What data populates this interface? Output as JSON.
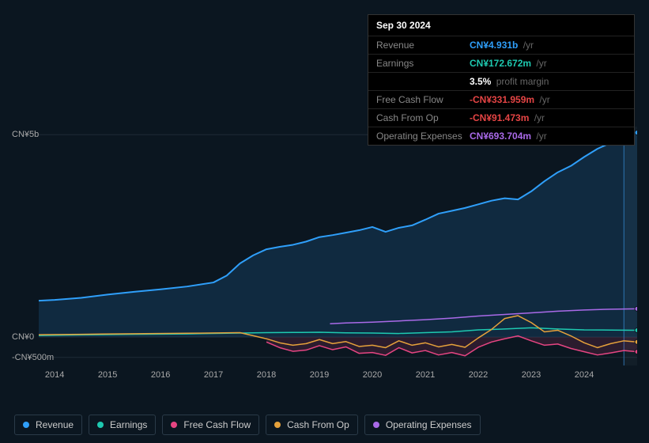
{
  "tooltip": {
    "date": "Sep 30 2024",
    "rows": [
      {
        "label": "Revenue",
        "value": "CN¥4.931b",
        "suffix": "/yr",
        "color": "#2f9ffa"
      },
      {
        "label": "Earnings",
        "value": "CN¥172.672m",
        "suffix": "/yr",
        "color": "#1ec9b0"
      },
      {
        "label": "",
        "value": "3.5%",
        "suffix": "profit margin",
        "color": "#ffffff"
      },
      {
        "label": "Free Cash Flow",
        "value": "-CN¥331.959m",
        "suffix": "/yr",
        "color": "#e64545"
      },
      {
        "label": "Cash From Op",
        "value": "-CN¥91.473m",
        "suffix": "/yr",
        "color": "#e64545"
      },
      {
        "label": "Operating Expenses",
        "value": "CN¥693.704m",
        "suffix": "/yr",
        "color": "#a96ae8"
      }
    ]
  },
  "chart": {
    "type": "line-area",
    "background_color": "#0b1620",
    "grid_color": "#1e2a36",
    "indicator_x": 2024.75,
    "future_band": {
      "from": 2024.75,
      "to": 2025.0,
      "color": "rgba(120,140,160,0.07)"
    },
    "xlim": [
      2013.7,
      2025.0
    ],
    "x_ticks": [
      2014,
      2015,
      2016,
      2017,
      2018,
      2019,
      2020,
      2021,
      2022,
      2023,
      2024
    ],
    "ylim": [
      -700,
      5200
    ],
    "y_ticks": [
      {
        "v": 5000,
        "label": "CN¥5b"
      },
      {
        "v": 0,
        "label": "CN¥0"
      },
      {
        "v": -500,
        "label": "-CN¥500m"
      }
    ],
    "tick_fontsize": 11,
    "tick_color": "#aaaaaa",
    "series": [
      {
        "name": "Revenue",
        "color": "#2f9ffa",
        "area_color": "rgba(47,159,250,0.15)",
        "area": true,
        "line_width": 2,
        "data": [
          [
            2013.7,
            900
          ],
          [
            2014.0,
            920
          ],
          [
            2014.5,
            970
          ],
          [
            2015.0,
            1050
          ],
          [
            2015.5,
            1120
          ],
          [
            2016.0,
            1180
          ],
          [
            2016.5,
            1250
          ],
          [
            2017.0,
            1350
          ],
          [
            2017.25,
            1520
          ],
          [
            2017.5,
            1820
          ],
          [
            2017.75,
            2020
          ],
          [
            2018.0,
            2170
          ],
          [
            2018.25,
            2230
          ],
          [
            2018.5,
            2280
          ],
          [
            2018.75,
            2360
          ],
          [
            2019.0,
            2470
          ],
          [
            2019.25,
            2520
          ],
          [
            2019.5,
            2580
          ],
          [
            2019.75,
            2640
          ],
          [
            2020.0,
            2720
          ],
          [
            2020.25,
            2600
          ],
          [
            2020.5,
            2700
          ],
          [
            2020.75,
            2760
          ],
          [
            2021.0,
            2900
          ],
          [
            2021.25,
            3050
          ],
          [
            2021.5,
            3120
          ],
          [
            2021.75,
            3190
          ],
          [
            2022.0,
            3280
          ],
          [
            2022.25,
            3370
          ],
          [
            2022.5,
            3430
          ],
          [
            2022.75,
            3400
          ],
          [
            2023.0,
            3600
          ],
          [
            2023.25,
            3850
          ],
          [
            2023.5,
            4070
          ],
          [
            2023.75,
            4230
          ],
          [
            2024.0,
            4450
          ],
          [
            2024.25,
            4650
          ],
          [
            2024.5,
            4800
          ],
          [
            2024.75,
            4931
          ],
          [
            2025.0,
            5050
          ]
        ]
      },
      {
        "name": "Earnings",
        "color": "#1ec9b0",
        "line_width": 1.5,
        "data": [
          [
            2013.7,
            40
          ],
          [
            2014.5,
            55
          ],
          [
            2015.5,
            70
          ],
          [
            2016.5,
            80
          ],
          [
            2017.5,
            100
          ],
          [
            2018.0,
            110
          ],
          [
            2018.5,
            115
          ],
          [
            2019.0,
            120
          ],
          [
            2019.5,
            105
          ],
          [
            2020.0,
            100
          ],
          [
            2020.5,
            90
          ],
          [
            2021.0,
            110
          ],
          [
            2021.5,
            130
          ],
          [
            2022.0,
            180
          ],
          [
            2022.5,
            200
          ],
          [
            2023.0,
            230
          ],
          [
            2023.5,
            200
          ],
          [
            2024.0,
            180
          ],
          [
            2024.5,
            175
          ],
          [
            2024.75,
            173
          ],
          [
            2025.0,
            170
          ]
        ]
      },
      {
        "name": "Free Cash Flow",
        "color": "#e64582",
        "area_color": "rgba(230,69,130,0.15)",
        "area": true,
        "line_width": 1.5,
        "data": [
          [
            2018.0,
            -120
          ],
          [
            2018.25,
            -260
          ],
          [
            2018.5,
            -350
          ],
          [
            2018.75,
            -320
          ],
          [
            2019.0,
            -210
          ],
          [
            2019.25,
            -310
          ],
          [
            2019.5,
            -240
          ],
          [
            2019.75,
            -400
          ],
          [
            2020.0,
            -380
          ],
          [
            2020.25,
            -450
          ],
          [
            2020.5,
            -260
          ],
          [
            2020.75,
            -390
          ],
          [
            2021.0,
            -330
          ],
          [
            2021.25,
            -440
          ],
          [
            2021.5,
            -380
          ],
          [
            2021.75,
            -460
          ],
          [
            2022.0,
            -250
          ],
          [
            2022.25,
            -120
          ],
          [
            2022.5,
            -40
          ],
          [
            2022.75,
            30
          ],
          [
            2023.0,
            -90
          ],
          [
            2023.25,
            -200
          ],
          [
            2023.5,
            -170
          ],
          [
            2023.75,
            -280
          ],
          [
            2024.0,
            -360
          ],
          [
            2024.25,
            -440
          ],
          [
            2024.5,
            -390
          ],
          [
            2024.75,
            -332
          ],
          [
            2025.0,
            -360
          ]
        ]
      },
      {
        "name": "Cash From Op",
        "color": "#e5a13b",
        "line_width": 1.5,
        "data": [
          [
            2013.7,
            60
          ],
          [
            2014.5,
            70
          ],
          [
            2015.5,
            85
          ],
          [
            2016.5,
            95
          ],
          [
            2017.5,
            110
          ],
          [
            2018.0,
            -40
          ],
          [
            2018.25,
            -140
          ],
          [
            2018.5,
            -200
          ],
          [
            2018.75,
            -160
          ],
          [
            2019.0,
            -60
          ],
          [
            2019.25,
            -160
          ],
          [
            2019.5,
            -110
          ],
          [
            2019.75,
            -230
          ],
          [
            2020.0,
            -200
          ],
          [
            2020.25,
            -260
          ],
          [
            2020.5,
            -90
          ],
          [
            2020.75,
            -200
          ],
          [
            2021.0,
            -140
          ],
          [
            2021.25,
            -240
          ],
          [
            2021.5,
            -180
          ],
          [
            2021.75,
            -250
          ],
          [
            2022.0,
            -20
          ],
          [
            2022.25,
            190
          ],
          [
            2022.5,
            460
          ],
          [
            2022.75,
            530
          ],
          [
            2023.0,
            360
          ],
          [
            2023.25,
            130
          ],
          [
            2023.5,
            170
          ],
          [
            2023.75,
            30
          ],
          [
            2024.0,
            -140
          ],
          [
            2024.25,
            -260
          ],
          [
            2024.5,
            -160
          ],
          [
            2024.75,
            -91
          ],
          [
            2025.0,
            -120
          ]
        ]
      },
      {
        "name": "Operating Expenses",
        "color": "#a96ae8",
        "line_width": 1.5,
        "data": [
          [
            2019.2,
            330
          ],
          [
            2019.5,
            350
          ],
          [
            2020.0,
            370
          ],
          [
            2020.5,
            400
          ],
          [
            2021.0,
            430
          ],
          [
            2021.5,
            470
          ],
          [
            2022.0,
            520
          ],
          [
            2022.5,
            560
          ],
          [
            2023.0,
            600
          ],
          [
            2023.5,
            640
          ],
          [
            2024.0,
            670
          ],
          [
            2024.5,
            690
          ],
          [
            2024.75,
            694
          ],
          [
            2025.0,
            700
          ]
        ]
      }
    ]
  },
  "legend": [
    {
      "name": "Revenue",
      "color": "#2f9ffa"
    },
    {
      "name": "Earnings",
      "color": "#1ec9b0"
    },
    {
      "name": "Free Cash Flow",
      "color": "#e64582"
    },
    {
      "name": "Cash From Op",
      "color": "#e5a13b"
    },
    {
      "name": "Operating Expenses",
      "color": "#a96ae8"
    }
  ]
}
